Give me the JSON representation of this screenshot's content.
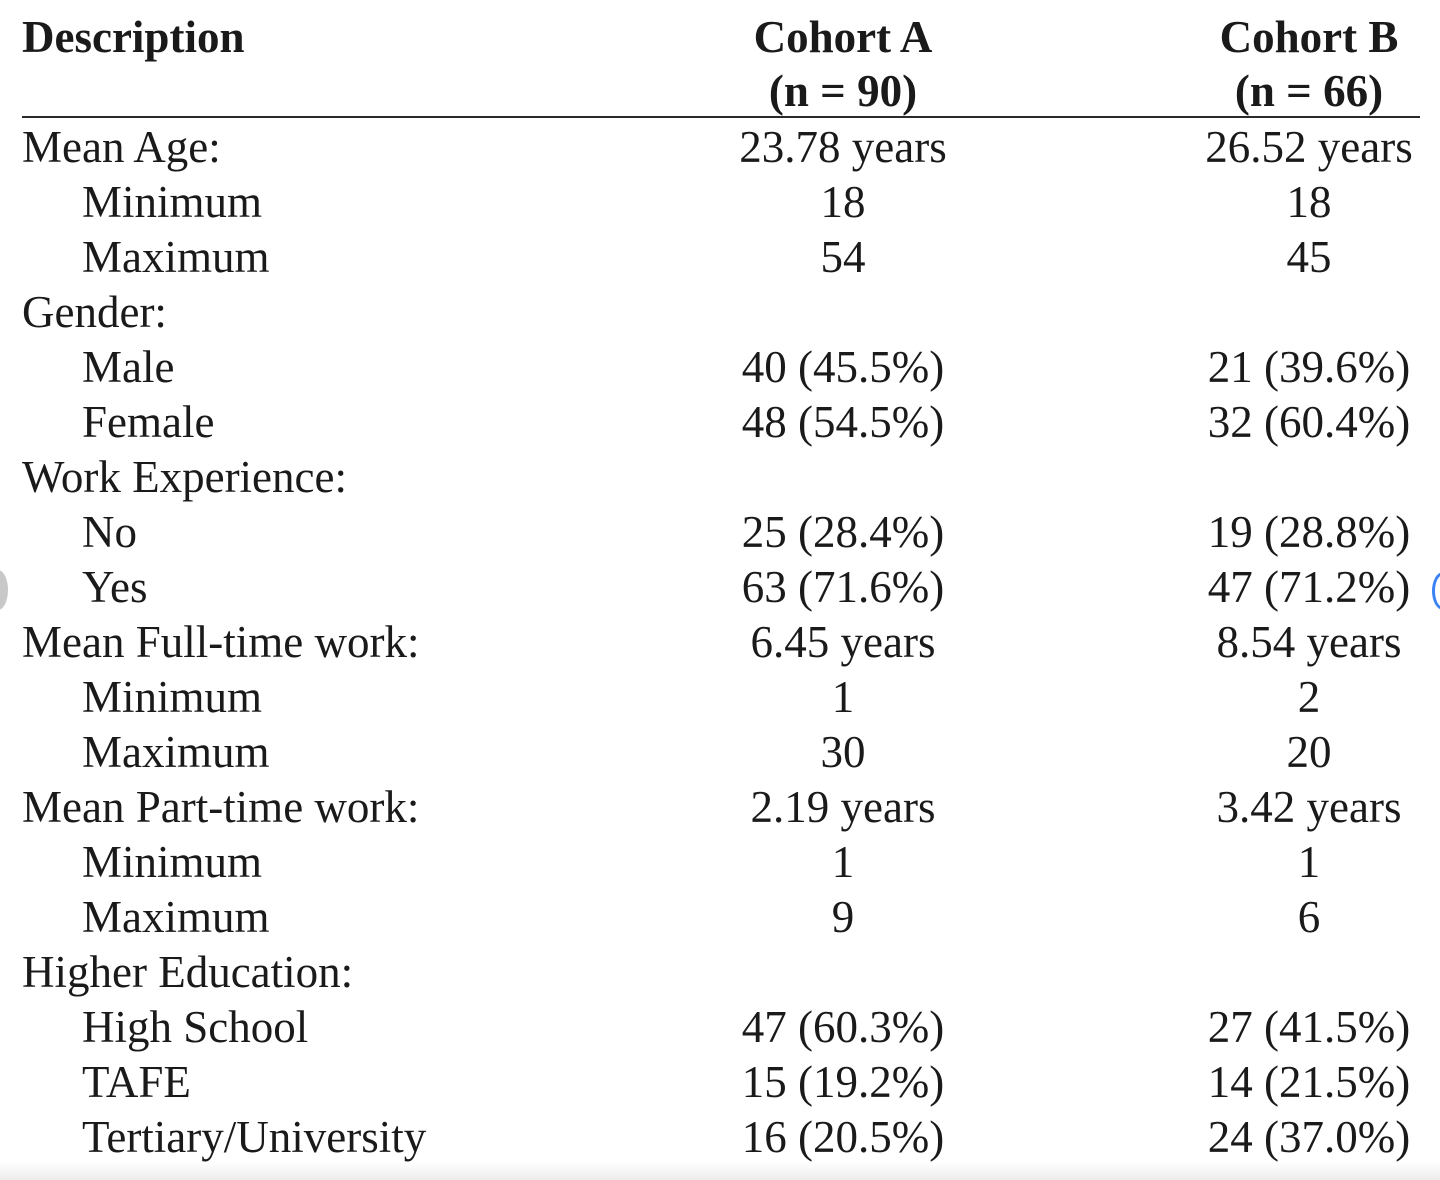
{
  "header": {
    "description": "Description",
    "cohort_a_name": "Cohort A",
    "cohort_a_n": "(n = 90)",
    "cohort_b_name": "Cohort B",
    "cohort_b_n": "(n = 66)"
  },
  "rows": [
    {
      "label": "Mean Age:",
      "a": "23.78 years",
      "b": "26.52 years"
    },
    {
      "label": "Minimum",
      "a": "18",
      "b": "18"
    },
    {
      "label": "Maximum",
      "a": "54",
      "b": "45"
    },
    {
      "label": "Gender:",
      "a": "",
      "b": ""
    },
    {
      "label": "Male",
      "a": "40 (45.5%)",
      "b": "21 (39.6%)"
    },
    {
      "label": "Female",
      "a": "48 (54.5%)",
      "b": "32 (60.4%)"
    },
    {
      "label": "Work Experience:",
      "a": "",
      "b": ""
    },
    {
      "label": "No",
      "a": "25 (28.4%)",
      "b": "19 (28.8%)"
    },
    {
      "label": "Yes",
      "a": "63 (71.6%)",
      "b": "47 (71.2%)"
    },
    {
      "label": "Mean Full-time work:",
      "a": "6.45 years",
      "b": "8.54 years"
    },
    {
      "label": "Minimum",
      "a": "1",
      "b": "2"
    },
    {
      "label": "Maximum",
      "a": "30",
      "b": "20"
    },
    {
      "label": "Mean Part-time work:",
      "a": "2.19 years",
      "b": "3.42 years"
    },
    {
      "label": "Minimum",
      "a": "1",
      "b": "1"
    },
    {
      "label": "Maximum",
      "a": "9",
      "b": "6"
    },
    {
      "label": "Higher Education:",
      "a": "",
      "b": ""
    },
    {
      "label": "High School",
      "a": "47 (60.3%)",
      "b": "27 (41.5%)"
    },
    {
      "label": "TAFE",
      "a": "15 (19.2%)",
      "b": "14 (21.5%)"
    },
    {
      "label": "Tertiary/University",
      "a": "16 (20.5%)",
      "b": "24 (37.0%)"
    }
  ]
}
